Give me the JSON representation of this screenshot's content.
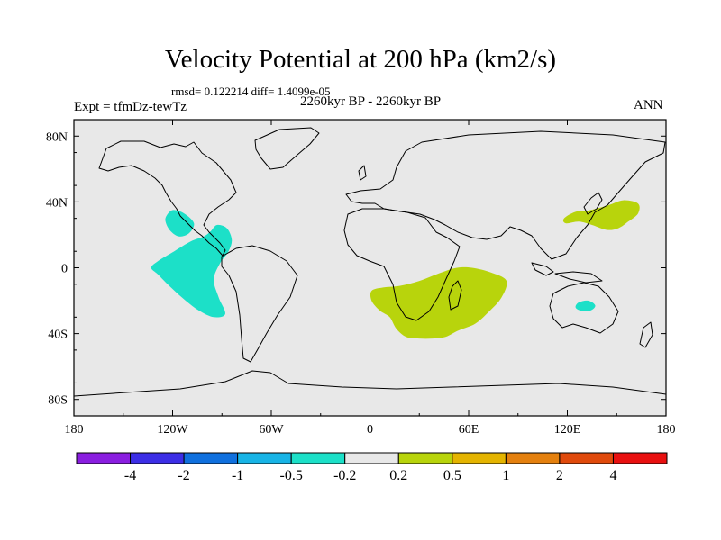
{
  "header": {
    "title": "Velocity Potential at 200 hPa (km2/s)",
    "stats": "rmsd= 0.122214  diff= 1.4099e-05",
    "period": "2260kyr BP - 2260kyr BP",
    "experiment": "Expt = tfmDz-tewTz",
    "season": "ANN"
  },
  "axes": {
    "lon_ticks": [
      {
        "lon": -180,
        "label": "180"
      },
      {
        "lon": -120,
        "label": "120W"
      },
      {
        "lon": -60,
        "label": "60W"
      },
      {
        "lon": 0,
        "label": "0"
      },
      {
        "lon": 60,
        "label": "60E"
      },
      {
        "lon": 120,
        "label": "120E"
      },
      {
        "lon": 180,
        "label": "180"
      }
    ],
    "lat_ticks": [
      {
        "lat": 80,
        "label": "80N"
      },
      {
        "lat": 40,
        "label": "40N"
      },
      {
        "lat": 0,
        "label": "0"
      },
      {
        "lat": -40,
        "label": "40S"
      },
      {
        "lat": -80,
        "label": "80S"
      }
    ],
    "lon_range": [
      -180,
      180
    ],
    "lat_range": [
      -90,
      90
    ]
  },
  "colorbar": {
    "colors": [
      "#8a1ee0",
      "#3c2ee6",
      "#1070de",
      "#18b4e6",
      "#1ce0c8",
      "#e8e8e8",
      "#b8d40c",
      "#e4b400",
      "#e4800e",
      "#e04a0c",
      "#e81010"
    ],
    "levels": [
      "-4",
      "-2",
      "-1",
      "-0.5",
      "-0.2",
      "0.2",
      "0.5",
      "1",
      "2",
      "4"
    ]
  },
  "chart_data": {
    "type": "filled contour map",
    "title": "Velocity Potential at 200 hPa (km2/s)",
    "units": "km2/s",
    "background_class": "-0.2 to 0.2",
    "regions": [
      {
        "name": "east-pacific-north-negative",
        "class": "-0.5 to -0.2",
        "color": "#1ce0c8",
        "lonlat": [
          [
            -124,
            31
          ],
          [
            -120,
            35
          ],
          [
            -113,
            33
          ],
          [
            -107,
            27
          ],
          [
            -110,
            21
          ],
          [
            -116,
            19
          ],
          [
            -121,
            22
          ],
          [
            -124,
            27
          ]
        ]
      },
      {
        "name": "east-pacific-south-negative",
        "class": "-0.5 to -0.2",
        "color": "#1ce0c8",
        "lonlat": [
          [
            -97,
            22
          ],
          [
            -93,
            26
          ],
          [
            -87,
            24
          ],
          [
            -84,
            17
          ],
          [
            -86,
            10
          ],
          [
            -91,
            3
          ],
          [
            -95,
            -7
          ],
          [
            -92,
            -18
          ],
          [
            -88,
            -28
          ],
          [
            -95,
            -30
          ],
          [
            -104,
            -26
          ],
          [
            -112,
            -20
          ],
          [
            -121,
            -12
          ],
          [
            -129,
            -4
          ],
          [
            -133,
            0
          ],
          [
            -129,
            4
          ],
          [
            -119,
            10
          ],
          [
            -109,
            16
          ],
          [
            -101,
            19
          ]
        ]
      },
      {
        "name": "north-australia-negative",
        "class": "-0.5 to -0.2",
        "color": "#1ce0c8",
        "lonlat": [
          [
            127,
            -21
          ],
          [
            133,
            -20
          ],
          [
            137,
            -23
          ],
          [
            134,
            -26
          ],
          [
            128,
            -26
          ],
          [
            125,
            -24
          ]
        ]
      },
      {
        "name": "africa-indian-ocean-positive",
        "class": "0.2 to 0.5",
        "color": "#b8d40c",
        "lonlat": [
          [
            30,
            -8
          ],
          [
            43,
            -3
          ],
          [
            53,
            0
          ],
          [
            62,
            0
          ],
          [
            74,
            -3
          ],
          [
            83,
            -8
          ],
          [
            80,
            -18
          ],
          [
            72,
            -27
          ],
          [
            64,
            -34
          ],
          [
            54,
            -38
          ],
          [
            46,
            -42
          ],
          [
            38,
            -43
          ],
          [
            30,
            -43
          ],
          [
            22,
            -42
          ],
          [
            16,
            -37
          ],
          [
            12,
            -30
          ],
          [
            6,
            -26
          ],
          [
            1,
            -20
          ],
          [
            1,
            -14
          ],
          [
            8,
            -12
          ],
          [
            18,
            -11
          ]
        ]
      },
      {
        "name": "west-pacific-positive",
        "class": "0.2 to 0.5",
        "color": "#b8d40c",
        "lonlat": [
          [
            118,
            30
          ],
          [
            125,
            34
          ],
          [
            134,
            35
          ],
          [
            145,
            38
          ],
          [
            154,
            41
          ],
          [
            163,
            39
          ],
          [
            163,
            33
          ],
          [
            157,
            28
          ],
          [
            151,
            24
          ],
          [
            144,
            23
          ],
          [
            135,
            26
          ],
          [
            127,
            28
          ],
          [
            119,
            27
          ]
        ]
      }
    ]
  }
}
